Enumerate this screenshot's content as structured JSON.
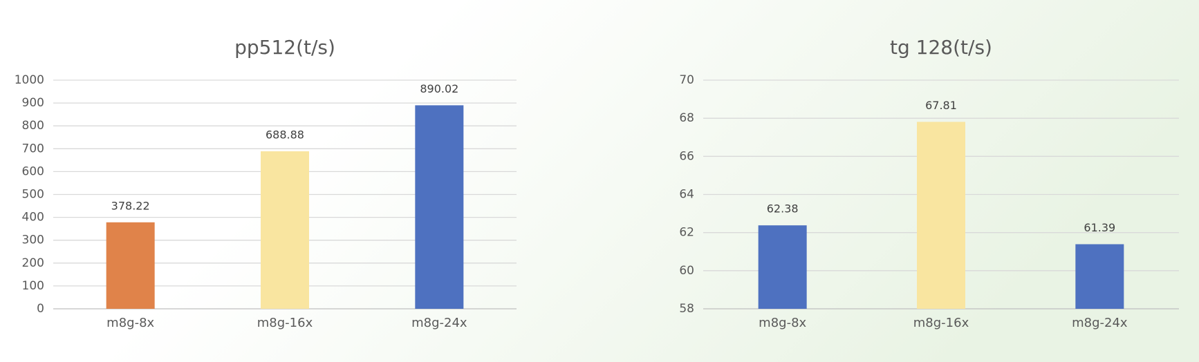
{
  "chart_data": [
    {
      "type": "bar",
      "title": "pp512(t/s)",
      "categories": [
        "m8g-8x",
        "m8g-16x",
        "m8g-24x"
      ],
      "values": [
        378.22,
        688.88,
        890.02
      ],
      "colors": [
        "#e0834a",
        "#f9e5a0",
        "#4e71c0"
      ],
      "ylim": [
        0,
        1000
      ],
      "yticks": [
        0,
        100,
        200,
        300,
        400,
        500,
        600,
        700,
        800,
        900,
        1000
      ],
      "grid": true
    },
    {
      "type": "bar",
      "title": "tg 128(t/s)",
      "categories": [
        "m8g-8x",
        "m8g-16x",
        "m8g-24x"
      ],
      "values": [
        62.38,
        67.81,
        61.39
      ],
      "colors": [
        "#4e71c0",
        "#f9e5a0",
        "#4e71c0"
      ],
      "ylim": [
        58,
        70
      ],
      "yticks": [
        58,
        60,
        62,
        64,
        66,
        68,
        70
      ],
      "grid": true
    }
  ]
}
